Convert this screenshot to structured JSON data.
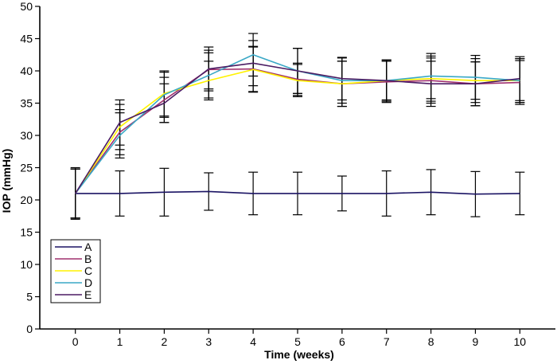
{
  "chart_data": {
    "type": "line",
    "title": "",
    "xlabel": "Time (weeks)",
    "ylabel": "IOP (mmHg)",
    "xlim": [
      -0.8,
      10.8
    ],
    "ylim": [
      0,
      50
    ],
    "x": [
      0,
      1,
      2,
      3,
      4,
      5,
      6,
      7,
      8,
      9,
      10
    ],
    "x_ticks": [
      "0",
      "1",
      "2",
      "3",
      "4",
      "5",
      "6",
      "7",
      "8",
      "9",
      "10"
    ],
    "y_ticks": [
      "0",
      "5",
      "10",
      "15",
      "20",
      "25",
      "30",
      "35",
      "40",
      "45",
      "50"
    ],
    "grid": false,
    "legend_position": "bottom-left",
    "series": [
      {
        "name": "A",
        "color": "#1b1464",
        "values": [
          21.0,
          21.0,
          21.2,
          21.3,
          21.0,
          21.0,
          21.0,
          21.0,
          21.2,
          20.9,
          21.0
        ],
        "err": [
          3.8,
          3.5,
          3.7,
          2.9,
          3.3,
          3.3,
          2.7,
          3.5,
          3.5,
          3.5,
          3.3
        ]
      },
      {
        "name": "B",
        "color": "#a0306e",
        "values": [
          21.0,
          30.5,
          35.5,
          40.2,
          40.3,
          38.7,
          38.0,
          38.3,
          38.5,
          38.0,
          38.2
        ],
        "err": [
          3.8,
          3.5,
          3.5,
          3.0,
          3.5,
          2.5,
          3.5,
          3.2,
          3.5,
          3.4,
          3.4
        ]
      },
      {
        "name": "C",
        "color": "#fff200",
        "values": [
          21.0,
          31.3,
          36.5,
          38.5,
          40.2,
          38.5,
          38.0,
          38.5,
          38.8,
          38.5,
          38.5
        ],
        "err": [
          3.8,
          3.5,
          3.5,
          3.0,
          3.5,
          2.5,
          3.5,
          3.2,
          3.5,
          3.4,
          3.4
        ]
      },
      {
        "name": "D",
        "color": "#3aa8c6",
        "values": [
          21.0,
          30.0,
          36.3,
          39.3,
          42.5,
          40.0,
          38.5,
          38.5,
          39.2,
          39.0,
          38.5
        ],
        "err": [
          3.8,
          3.5,
          3.5,
          3.5,
          3.3,
          3.5,
          3.5,
          3.2,
          3.5,
          3.4,
          3.4
        ]
      },
      {
        "name": "E",
        "color": "#4b1c63",
        "values": [
          21.0,
          32.0,
          35.0,
          40.3,
          41.2,
          40.0,
          38.8,
          38.5,
          38.0,
          38.0,
          38.8
        ],
        "err": [
          4.0,
          3.5,
          3.0,
          3.4,
          3.5,
          3.5,
          3.3,
          3.0,
          3.5,
          3.4,
          3.4
        ]
      }
    ]
  }
}
